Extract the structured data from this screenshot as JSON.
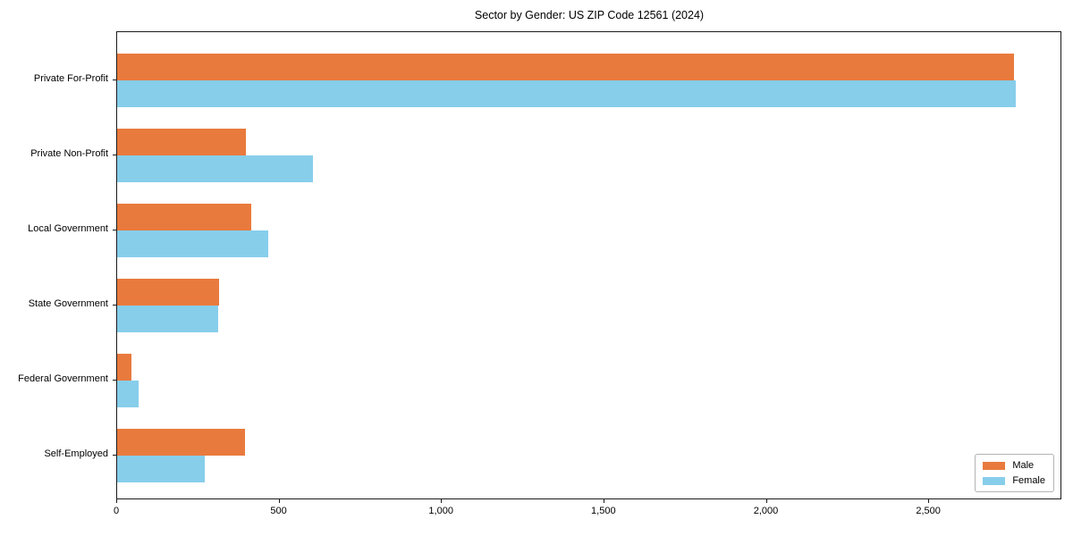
{
  "chart_data": {
    "type": "bar",
    "orientation": "horizontal",
    "title": "Sector by Gender: US ZIP Code 12561 (2024)",
    "categories": [
      "Private For-Profit",
      "Private Non-Profit",
      "Local Government",
      "State Government",
      "Federal Government",
      "Self-Employed"
    ],
    "series": [
      {
        "name": "Male",
        "color": "#e97a3d",
        "values": [
          2762,
          397,
          412,
          315,
          43,
          393
        ]
      },
      {
        "name": "Female",
        "color": "#87ceeb",
        "values": [
          2768,
          602,
          464,
          312,
          67,
          270
        ]
      }
    ],
    "xlim": [
      0,
      2910
    ],
    "xticks": [
      0,
      500,
      1000,
      1500,
      2000,
      2500
    ],
    "xtick_labels": [
      "0",
      "500",
      "1,000",
      "1,500",
      "2,000",
      "2,500"
    ],
    "xlabel": "",
    "ylabel": "",
    "grid": false,
    "legend": {
      "position": "lower right",
      "entries": [
        "Male",
        "Female"
      ]
    }
  },
  "colors": {
    "axis": "#1a1a1a",
    "background": "#ffffff",
    "legend_border": "#b3b3b3"
  }
}
